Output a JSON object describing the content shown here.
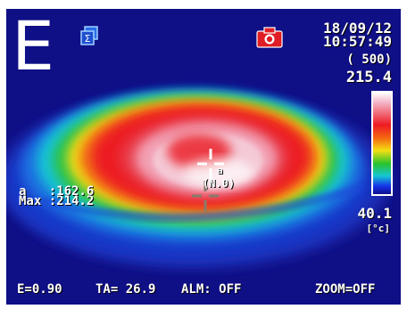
{
  "mode": {
    "letter": "E"
  },
  "icons": {
    "sigma": "sigma-icon",
    "camera": "camera-icon"
  },
  "datetime": {
    "date": "18/09/12",
    "time": "10:57:49"
  },
  "scale": {
    "range_label": "( 500)",
    "max": "215.4",
    "min": "40.1",
    "unit": "[°c]"
  },
  "readout": {
    "a_line": "a   :162.6",
    "max_line": "Max :214.2"
  },
  "cursor": {
    "label": "a",
    "sub_label": "(N.0)"
  },
  "status": {
    "emissivity": "E=0.90",
    "ta": "TA= 26.9",
    "alarm": "ALM: OFF",
    "zoom": "ZOOM=OFF"
  },
  "colors": {
    "background": "#0f0f86",
    "hot_white": "#ffffff",
    "red": "#ee1a22",
    "yellow": "#f3e014",
    "green": "#29c32b",
    "cyan": "#15c7d4",
    "blue": "#1734e8",
    "camera_red": "#e01c24"
  }
}
